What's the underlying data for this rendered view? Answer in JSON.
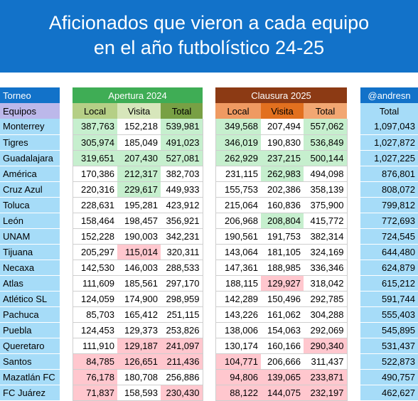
{
  "title": {
    "line1": "Aficionados que vieron a cada equipo",
    "line2": "en el año futbolístico 24-25"
  },
  "header": {
    "torneo": "Torneo",
    "apertura": "Apertura 2024",
    "clausura": "Clausura 2025",
    "author": "@andresn",
    "equipos": "Equipos",
    "local": "Local",
    "visita": "Visita",
    "total": "Total"
  },
  "colors": {
    "title_bg": "#1272c9",
    "apertura": "#3fad55",
    "clausura": "#8c3a14",
    "team_bg": "#a6dcf8",
    "highlight_high": "#c6efce",
    "highlight_low": "#ffc7ce"
  },
  "rows": [
    {
      "team": "Monterrey",
      "a_local": "387,763",
      "a_visita": "152,218",
      "a_total": "539,981",
      "c_local": "349,568",
      "c_visita": "207,494",
      "c_total": "557,062",
      "total": "1,097,043"
    },
    {
      "team": "Tigres",
      "a_local": "305,974",
      "a_visita": "185,049",
      "a_total": "491,023",
      "c_local": "346,019",
      "c_visita": "190,830",
      "c_total": "536,849",
      "total": "1,027,872"
    },
    {
      "team": "Guadalajara",
      "a_local": "319,651",
      "a_visita": "207,430",
      "a_total": "527,081",
      "c_local": "262,929",
      "c_visita": "237,215",
      "c_total": "500,144",
      "total": "1,027,225"
    },
    {
      "team": "América",
      "a_local": "170,386",
      "a_visita": "212,317",
      "a_total": "382,703",
      "c_local": "231,115",
      "c_visita": "262,983",
      "c_total": "494,098",
      "total": "876,801"
    },
    {
      "team": "Cruz Azul",
      "a_local": "220,316",
      "a_visita": "229,617",
      "a_total": "449,933",
      "c_local": "155,753",
      "c_visita": "202,386",
      "c_total": "358,139",
      "total": "808,072"
    },
    {
      "team": "Toluca",
      "a_local": "228,631",
      "a_visita": "195,281",
      "a_total": "423,912",
      "c_local": "215,064",
      "c_visita": "160,836",
      "c_total": "375,900",
      "total": "799,812"
    },
    {
      "team": "León",
      "a_local": "158,464",
      "a_visita": "198,457",
      "a_total": "356,921",
      "c_local": "206,968",
      "c_visita": "208,804",
      "c_total": "415,772",
      "total": "772,693"
    },
    {
      "team": "UNAM",
      "a_local": "152,228",
      "a_visita": "190,003",
      "a_total": "342,231",
      "c_local": "190,561",
      "c_visita": "191,753",
      "c_total": "382,314",
      "total": "724,545"
    },
    {
      "team": "Tijuana",
      "a_local": "205,297",
      "a_visita": "115,014",
      "a_total": "320,311",
      "c_local": "143,064",
      "c_visita": "181,105",
      "c_total": "324,169",
      "total": "644,480"
    },
    {
      "team": "Necaxa",
      "a_local": "142,530",
      "a_visita": "146,003",
      "a_total": "288,533",
      "c_local": "147,361",
      "c_visita": "188,985",
      "c_total": "336,346",
      "total": "624,879"
    },
    {
      "team": "Atlas",
      "a_local": "111,609",
      "a_visita": "185,561",
      "a_total": "297,170",
      "c_local": "188,115",
      "c_visita": "129,927",
      "c_total": "318,042",
      "total": "615,212"
    },
    {
      "team": "Atlético SL",
      "a_local": "124,059",
      "a_visita": "174,900",
      "a_total": "298,959",
      "c_local": "142,289",
      "c_visita": "150,496",
      "c_total": "292,785",
      "total": "591,744"
    },
    {
      "team": "Pachuca",
      "a_local": "85,703",
      "a_visita": "165,412",
      "a_total": "251,115",
      "c_local": "143,226",
      "c_visita": "161,062",
      "c_total": "304,288",
      "total": "555,403"
    },
    {
      "team": "Puebla",
      "a_local": "124,453",
      "a_visita": "129,373",
      "a_total": "253,826",
      "c_local": "138,006",
      "c_visita": "154,063",
      "c_total": "292,069",
      "total": "545,895"
    },
    {
      "team": "Queretaro",
      "a_local": "111,910",
      "a_visita": "129,187",
      "a_total": "241,097",
      "c_local": "130,174",
      "c_visita": "160,166",
      "c_total": "290,340",
      "total": "531,437"
    },
    {
      "team": "Santos",
      "a_local": "84,785",
      "a_visita": "126,651",
      "a_total": "211,436",
      "c_local": "104,771",
      "c_visita": "206,666",
      "c_total": "311,437",
      "total": "522,873"
    },
    {
      "team": "Mazatlán FC",
      "a_local": "76,178",
      "a_visita": "180,708",
      "a_total": "256,886",
      "c_local": "94,806",
      "c_visita": "139,065",
      "c_total": "233,871",
      "total": "490,757"
    },
    {
      "team": "FC Juárez",
      "a_local": "71,837",
      "a_visita": "158,593",
      "a_total": "230,430",
      "c_local": "88,122",
      "c_visita": "144,075",
      "c_total": "232,197",
      "total": "462,627"
    }
  ],
  "highlights": {
    "high": [
      [
        0,
        "a_local"
      ],
      [
        0,
        "a_total"
      ],
      [
        0,
        "c_local"
      ],
      [
        0,
        "c_total"
      ],
      [
        1,
        "a_local"
      ],
      [
        1,
        "a_total"
      ],
      [
        1,
        "c_local"
      ],
      [
        1,
        "c_total"
      ],
      [
        2,
        "a_local"
      ],
      [
        2,
        "a_visita"
      ],
      [
        2,
        "a_total"
      ],
      [
        2,
        "c_local"
      ],
      [
        2,
        "c_visita"
      ],
      [
        2,
        "c_total"
      ],
      [
        3,
        "a_visita"
      ],
      [
        3,
        "c_visita"
      ],
      [
        4,
        "a_visita"
      ],
      [
        6,
        "c_visita"
      ]
    ],
    "low": [
      [
        8,
        "a_visita"
      ],
      [
        10,
        "c_visita"
      ],
      [
        14,
        "a_visita"
      ],
      [
        14,
        "a_total"
      ],
      [
        14,
        "c_total"
      ],
      [
        15,
        "a_local"
      ],
      [
        15,
        "a_visita"
      ],
      [
        15,
        "a_total"
      ],
      [
        15,
        "c_local"
      ],
      [
        16,
        "a_local"
      ],
      [
        16,
        "c_local"
      ],
      [
        16,
        "c_visita"
      ],
      [
        16,
        "c_total"
      ],
      [
        17,
        "a_local"
      ],
      [
        17,
        "a_total"
      ],
      [
        17,
        "c_local"
      ],
      [
        17,
        "c_visita"
      ],
      [
        17,
        "c_total"
      ]
    ]
  }
}
